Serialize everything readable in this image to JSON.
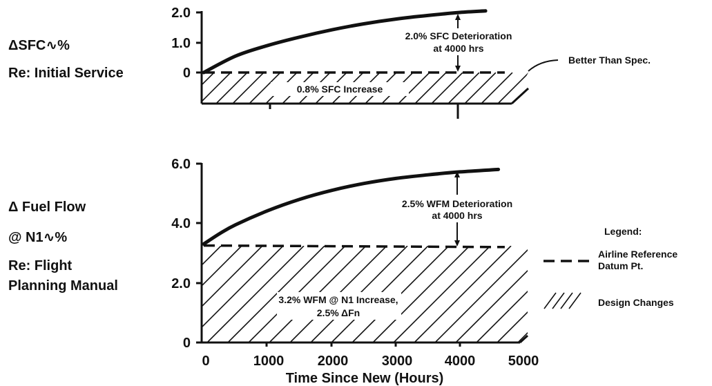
{
  "panels": [
    {
      "side_label_lines": [
        "ΔSFC∿%",
        "Re: Initial Service"
      ],
      "y_ticks": [
        "2.0",
        "1.0",
        "0"
      ],
      "annotations": {
        "deterioration": [
          "2.0% SFC Deterioration",
          "at 4000 hrs"
        ],
        "increase": "0.8% SFC Increase",
        "callout": "Better Than Spec."
      }
    },
    {
      "side_label_lines": [
        "Δ Fuel Flow",
        "@ N1∿%",
        "Re: Flight",
        "Planning Manual"
      ],
      "y_ticks": [
        "6.0",
        "4.0",
        "2.0",
        "0"
      ],
      "annotations": {
        "deterioration": [
          "2.5% WFM Deterioration",
          "at 4000 hrs"
        ],
        "increase": [
          "3.2% WFM @ N1 Increase,",
          "2.5%  ΔFn"
        ]
      }
    }
  ],
  "x_axis": {
    "ticks": [
      "0",
      "1000",
      "2000",
      "3000",
      "4000",
      "5000"
    ],
    "label": "Time Since New (Hours)"
  },
  "legend": {
    "title": "Legend:",
    "items": [
      {
        "label_lines": [
          "Airline Reference",
          "Datum Pt."
        ],
        "symbol": "dashed-line"
      },
      {
        "label_lines": [
          "Design Changes"
        ],
        "symbol": "hatch"
      }
    ]
  },
  "chart_data": [
    {
      "type": "line",
      "x_unit": "hours",
      "ylim": [
        -1.1,
        2.0
      ],
      "yticks": [
        0,
        1.0,
        2.0
      ],
      "xlim": [
        0,
        5000
      ],
      "series": [
        {
          "style": "solid",
          "x": [
            0,
            500,
            1000,
            1500,
            2000,
            2500,
            3000,
            3500,
            4000,
            4400
          ],
          "y": [
            0,
            0.55,
            0.9,
            1.18,
            1.42,
            1.62,
            1.78,
            1.9,
            2.0,
            2.05
          ]
        },
        {
          "style": "dashed",
          "x": [
            0,
            4700
          ],
          "y": [
            0,
            0
          ]
        }
      ],
      "shaded_region": {
        "pattern": "hatch",
        "x": [
          0,
          4700
        ],
        "y": [
          -1.1,
          0
        ]
      }
    },
    {
      "type": "line",
      "x_unit": "hours",
      "ylim": [
        0,
        6.0
      ],
      "yticks": [
        0,
        2.0,
        4.0,
        6.0
      ],
      "xlim": [
        0,
        5000
      ],
      "series": [
        {
          "style": "solid",
          "x": [
            0,
            250,
            500,
            1000,
            1500,
            2000,
            2500,
            3000,
            3500,
            4000,
            4600
          ],
          "y": [
            3.3,
            3.65,
            3.95,
            4.42,
            4.8,
            5.1,
            5.33,
            5.5,
            5.62,
            5.72,
            5.8
          ]
        },
        {
          "style": "dashed",
          "x": [
            0,
            4700
          ],
          "y": [
            3.25,
            3.2
          ]
        }
      ],
      "shaded_region": {
        "pattern": "hatch",
        "x": [
          0,
          4700
        ],
        "y": [
          0,
          3.2
        ]
      }
    }
  ]
}
